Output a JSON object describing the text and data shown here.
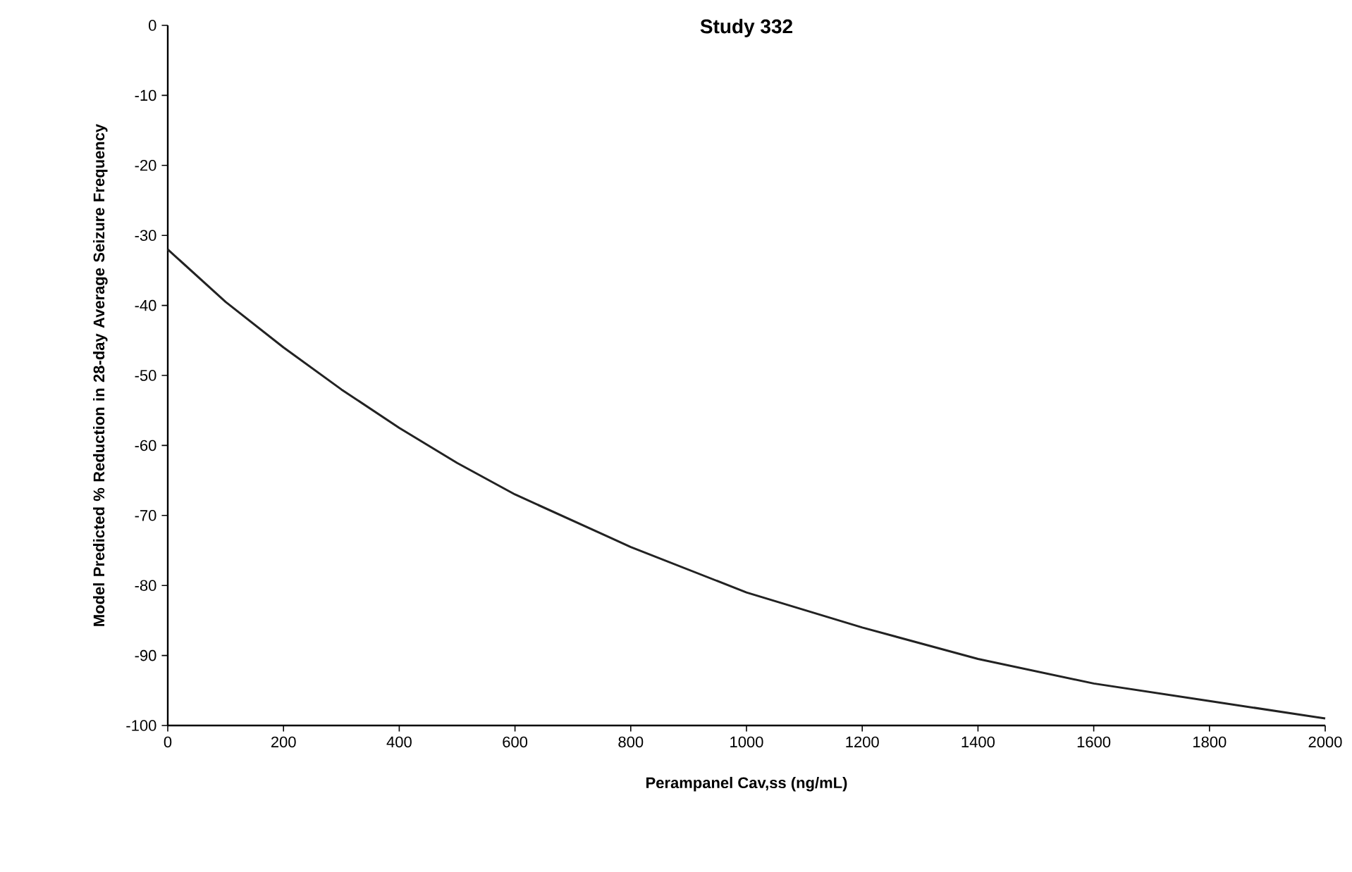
{
  "chart_data": {
    "type": "line",
    "title": "Study 332",
    "xlabel": "Perampanel Cav,ss (ng/mL)",
    "ylabel": "Model Predicted % Reduction in 28-day Average Seizure Frequency",
    "x": [
      0,
      100,
      200,
      300,
      400,
      500,
      600,
      800,
      1000,
      1200,
      1400,
      1600,
      1800,
      2000
    ],
    "series": [
      {
        "color": "#222222",
        "values": [
          -32,
          -39.5,
          -46,
          -52,
          -57.5,
          -62.5,
          -67,
          -74.5,
          -81,
          -86,
          -90.5,
          -94,
          -96.5,
          -99
        ]
      }
    ],
    "xlim": [
      0,
      2000
    ],
    "xticks": [
      0,
      200,
      400,
      600,
      800,
      1000,
      1200,
      1400,
      1600,
      1800,
      2000
    ],
    "ylim": [
      -100,
      0
    ],
    "yticks": [
      -100,
      -90,
      -80,
      -70,
      -60,
      -50,
      -40,
      -30,
      -20,
      -10,
      0
    ],
    "marker": "none",
    "line_style": "solid"
  }
}
